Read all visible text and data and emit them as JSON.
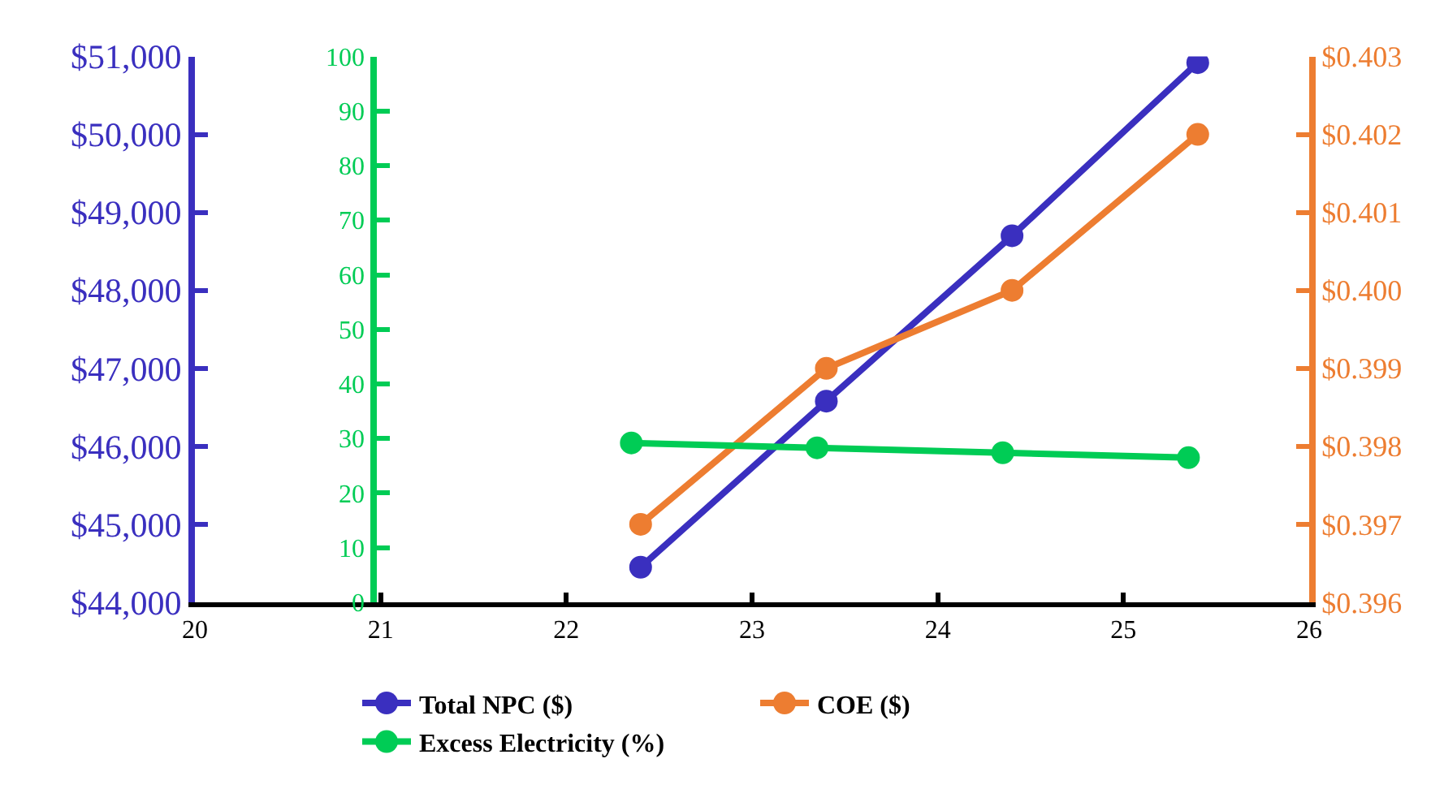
{
  "chart_data": {
    "type": "line",
    "x": [
      22.4,
      23.4,
      24.4,
      25.4
    ],
    "series": [
      {
        "name": "Total NPC ($)",
        "color": "#3a2fbf",
        "values": [
          44450,
          46580,
          48700,
          50920
        ]
      },
      {
        "name": "COE ($)",
        "color": "#ed7d31",
        "values": [
          0.397,
          0.399,
          0.4,
          0.402
        ],
        "axis": "y2"
      },
      {
        "name": "Excess Electricity (%)",
        "color": "#00cc55",
        "x": [
          22.35,
          23.35,
          24.35,
          25.35
        ],
        "values": [
          29.2,
          28.3,
          27.4,
          26.5
        ],
        "axis": "y3"
      }
    ],
    "xlim": [
      20,
      26
    ],
    "xticks": [
      20,
      21,
      22,
      23,
      24,
      25,
      26
    ],
    "ylim": [
      44000,
      51000
    ],
    "yticks": [
      {
        "value": 44000,
        "label": "$44,000"
      },
      {
        "value": 45000,
        "label": "$45,000"
      },
      {
        "value": 46000,
        "label": "$46,000"
      },
      {
        "value": 47000,
        "label": "$47,000"
      },
      {
        "value": 48000,
        "label": "$48,000"
      },
      {
        "value": 49000,
        "label": "$49,000"
      },
      {
        "value": 50000,
        "label": "$50,000"
      },
      {
        "value": 51000,
        "label": "$51,000"
      }
    ],
    "y2lim": [
      0.396,
      0.403
    ],
    "y2ticks": [
      {
        "value": 0.396,
        "label": "$0.396"
      },
      {
        "value": 0.397,
        "label": "$0.397"
      },
      {
        "value": 0.398,
        "label": "$0.398"
      },
      {
        "value": 0.399,
        "label": "$0.399"
      },
      {
        "value": 0.4,
        "label": "$0.400"
      },
      {
        "value": 0.401,
        "label": "$0.401"
      },
      {
        "value": 0.402,
        "label": "$0.402"
      },
      {
        "value": 0.403,
        "label": "$0.403"
      }
    ],
    "y3lim": [
      0,
      100
    ],
    "y3ticks": [
      0,
      10,
      20,
      30,
      40,
      50,
      60,
      70,
      80,
      90,
      100
    ],
    "grid": false,
    "legend": "bottom",
    "marker": "circle",
    "line_style": "solid"
  }
}
